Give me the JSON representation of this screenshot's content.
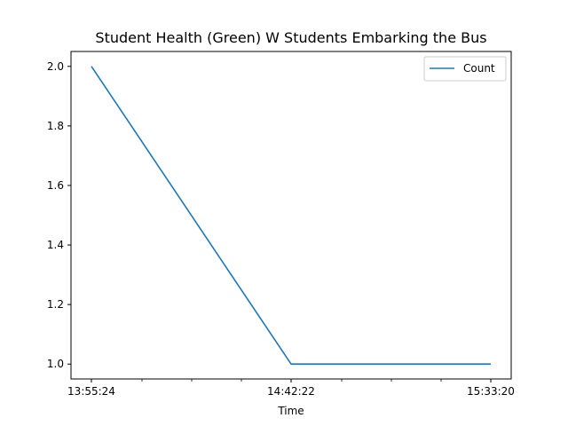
{
  "chart_data": {
    "type": "line",
    "title": "Student Health (Green) W Students Embarking the Bus",
    "xlabel": "Time",
    "ylabel": "",
    "x": [
      "13:55:24",
      "14:42:22",
      "15:33:20"
    ],
    "xticks": [
      "13:55:24",
      "14:42:22",
      "15:33:20"
    ],
    "series": [
      {
        "name": "Count",
        "values": [
          2.0,
          1.0,
          1.0
        ],
        "color": "#1f77b4"
      }
    ],
    "ylim": [
      0.95,
      2.05
    ],
    "yticks": [
      "1.0",
      "1.2",
      "1.4",
      "1.6",
      "1.8",
      "2.0"
    ],
    "grid": false,
    "legend": "top-right"
  }
}
